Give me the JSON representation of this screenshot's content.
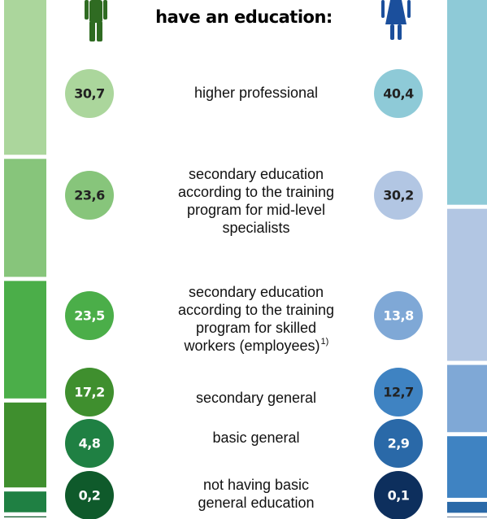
{
  "chart_data": {
    "type": "stacked-columns",
    "title": "have an education:",
    "categories": [
      [
        "higher professional"
      ],
      [
        "secondary education",
        "according to the training",
        "program for mid-level",
        "specialists"
      ],
      [
        "secondary education",
        "according to the training",
        "program for skilled",
        "workers  (employees)"
      ],
      [
        "secondary general"
      ],
      [
        "basic general"
      ],
      [
        "not having basic",
        "general education"
      ]
    ],
    "category_footnotes": {
      "2": "1)"
    },
    "series": [
      {
        "colors": [
          "#abd69c",
          "#87c57b",
          "#4bae49",
          "#3f8f2e",
          "#1f8043",
          "#0f5a2b"
        ],
        "label_colors": [
          "#222",
          "#222",
          "#fff",
          "#fff",
          "#fff",
          "#fff"
        ],
        "values": [
          30.7,
          23.6,
          23.5,
          17.2,
          4.8,
          0.2
        ],
        "value_labels": [
          "30,7",
          "23,6",
          "23,5",
          "17,2",
          "4,8",
          "0,2"
        ]
      },
      {
        "colors": [
          "#8ecad7",
          "#b2c6e3",
          "#7fa8d6",
          "#3f83c2",
          "#2a69a8",
          "#0d2f5d"
        ],
        "label_colors": [
          "#222",
          "#222",
          "#fff",
          "#222",
          "#fff",
          "#fff"
        ],
        "values": [
          40.4,
          30.2,
          13.8,
          12.7,
          2.9,
          0.1
        ],
        "value_labels": [
          "40,4",
          "30,2",
          "13,8",
          "12,7",
          "2,9",
          "0,1"
        ]
      }
    ]
  }
}
